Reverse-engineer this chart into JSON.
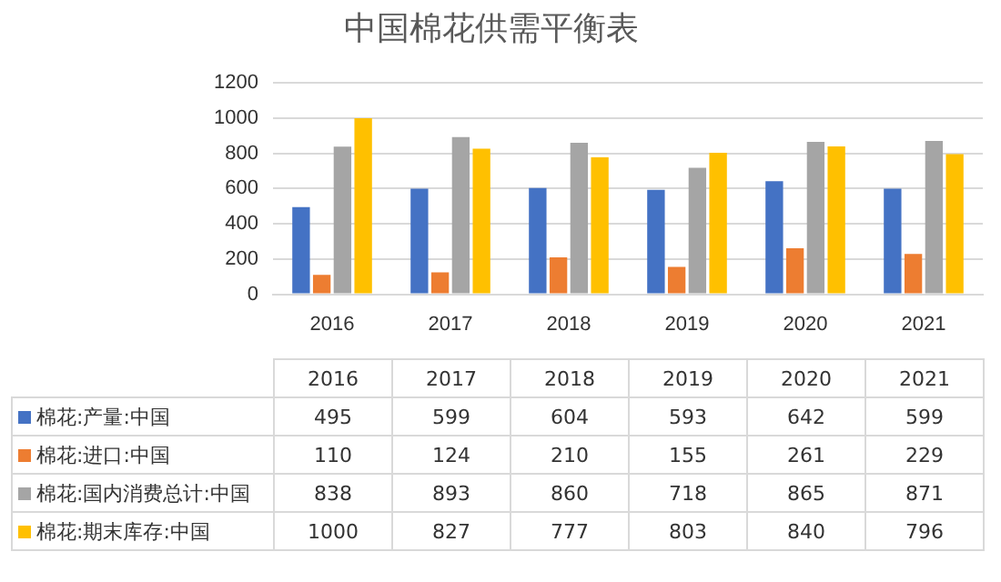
{
  "chart_data": {
    "type": "bar",
    "title": "中国棉花供需平衡表",
    "categories": [
      "2016",
      "2017",
      "2018",
      "2019",
      "2020",
      "2021"
    ],
    "series": [
      {
        "name": "棉花:产量:中国",
        "color": "#4472c4",
        "values": [
          495,
          599,
          604,
          593,
          642,
          599
        ]
      },
      {
        "name": "棉花:进口:中国",
        "color": "#ed7d31",
        "values": [
          110,
          124,
          210,
          155,
          261,
          229
        ]
      },
      {
        "name": "棉花:国内消费总计:中国",
        "color": "#a5a5a5",
        "values": [
          838,
          893,
          860,
          718,
          865,
          871
        ]
      },
      {
        "name": "棉花:期末库存:中国",
        "color": "#ffc000",
        "values": [
          1000,
          827,
          777,
          803,
          840,
          796
        ]
      }
    ],
    "ylim": [
      0,
      1200
    ],
    "yticks": [
      0,
      200,
      400,
      600,
      800,
      1000,
      1200
    ],
    "grid": "y",
    "legend": "bottom",
    "data_labels": true
  }
}
